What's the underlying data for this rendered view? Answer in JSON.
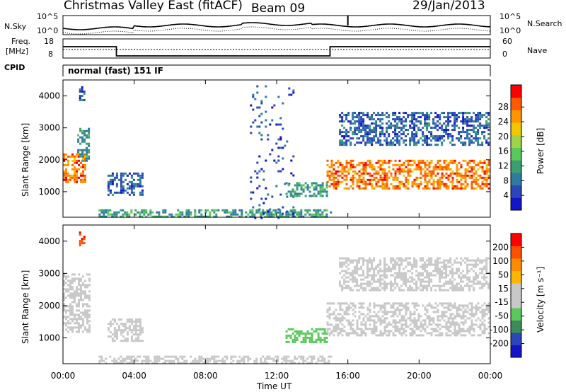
{
  "header": {
    "title": "Christmas Valley East (fitACF)",
    "beam": "Beam 09",
    "date": "29/Jan/2013"
  },
  "strips": {
    "nsky_label": "N.Sky",
    "nsky_ticks": [
      "10^5",
      "10^0"
    ],
    "nsearch_label": "N.Search",
    "nsearch_ticks": [
      "10^5",
      "10^0"
    ],
    "freq_label": "Freq.",
    "freq_unit": "[MHz]",
    "freq_ticks": [
      "18",
      "8"
    ],
    "nave_label": "Nave",
    "nave_ticks": [
      "60",
      "0"
    ],
    "cpid_label": "CPID",
    "cpid_text": "normal (fast) 151 IF"
  },
  "colors": {
    "power": [
      "#1414c8",
      "#2a46b8",
      "#2e7aa0",
      "#3aa070",
      "#5ac85a",
      "#a0d24a",
      "#f0c800",
      "#ff9600",
      "#ff5a00",
      "#ff0000"
    ],
    "velocity": [
      "#1414c8",
      "#2a46b8",
      "#3c8c5a",
      "#5ac85a",
      "#c8c8c8",
      "#c8c8c8",
      "#ffb400",
      "#ff8c00",
      "#ff5000",
      "#ff0000"
    ]
  },
  "chart_data": [
    {
      "type": "heatmap",
      "panel": "power",
      "ylabel": "Slant Range [km]",
      "yticks": [
        1000,
        2000,
        3000,
        4000
      ],
      "ylim": [
        200,
        4500
      ],
      "xlim": [
        0,
        24
      ],
      "xticks": [
        "00:00",
        "04:00",
        "08:00",
        "12:00",
        "16:00",
        "20:00",
        "00:00"
      ],
      "colorbar_label": "Power [dB]",
      "colorbar_ticks": [
        "4",
        "8",
        "12",
        "16",
        "20",
        "24",
        "28"
      ],
      "colorbar_range": [
        0,
        30
      ],
      "regions": [
        {
          "t0": 0.0,
          "t1": 1.2,
          "r0": 1300,
          "r1": 2200,
          "value": 24
        },
        {
          "t0": 0.8,
          "t1": 1.5,
          "r0": 2000,
          "r1": 3000,
          "value": 10
        },
        {
          "t0": 0.9,
          "t1": 1.2,
          "r0": 3900,
          "r1": 4300,
          "value": 6
        },
        {
          "t0": 2.5,
          "t1": 4.5,
          "r0": 900,
          "r1": 1600,
          "value": 6
        },
        {
          "t0": 2.0,
          "t1": 15.0,
          "r0": 250,
          "r1": 450,
          "value": 10
        },
        {
          "t0": 10.5,
          "t1": 13.0,
          "r0": 200,
          "r1": 4400,
          "value": 5
        },
        {
          "t0": 12.5,
          "t1": 14.8,
          "r0": 900,
          "r1": 1300,
          "value": 10
        },
        {
          "t0": 14.8,
          "t1": 23.9,
          "r0": 1100,
          "r1": 2000,
          "value": 24
        },
        {
          "t0": 15.5,
          "t1": 23.9,
          "r0": 2500,
          "r1": 3500,
          "value": 6
        }
      ]
    },
    {
      "type": "heatmap",
      "panel": "velocity",
      "ylabel": "Slant Range [km]",
      "yticks": [
        1000,
        2000,
        3000,
        4000
      ],
      "ylim": [
        200,
        4500
      ],
      "xlim": [
        0,
        24
      ],
      "xticks": [
        "00:00",
        "04:00",
        "08:00",
        "12:00",
        "16:00",
        "20:00",
        "00:00"
      ],
      "xlabel": "Time UT",
      "colorbar_label": "Velocity [m s⁻¹]",
      "colorbar_ticks": [
        "200",
        "100",
        "50",
        "15",
        "-15",
        "-50",
        "-100",
        "-200"
      ],
      "colorbar_range": [
        -250,
        250
      ],
      "regions": [
        {
          "t0": 0.0,
          "t1": 1.5,
          "r0": 1200,
          "r1": 3000,
          "value": 0
        },
        {
          "t0": 0.9,
          "t1": 1.2,
          "r0": 3900,
          "r1": 4300,
          "value": 200
        },
        {
          "t0": 2.5,
          "t1": 4.5,
          "r0": 900,
          "r1": 1600,
          "value": 40
        },
        {
          "t0": 2.0,
          "t1": 15.0,
          "r0": 250,
          "r1": 450,
          "value": -40
        },
        {
          "t0": 12.5,
          "t1": 14.8,
          "r0": 900,
          "r1": 1300,
          "value": -60
        },
        {
          "t0": 14.8,
          "t1": 23.9,
          "r0": 1100,
          "r1": 2100,
          "value": 0
        },
        {
          "t0": 15.5,
          "t1": 23.9,
          "r0": 2500,
          "r1": 3500,
          "value": -10
        }
      ]
    }
  ]
}
